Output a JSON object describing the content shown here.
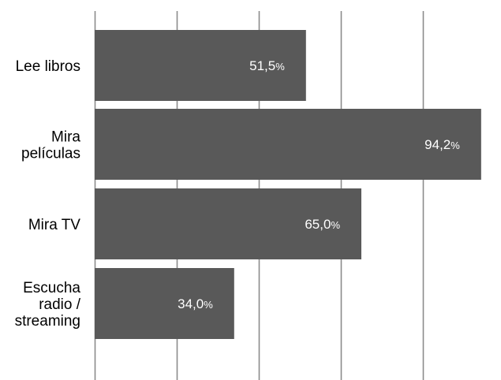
{
  "chart_data": {
    "type": "bar",
    "orientation": "horizontal",
    "categories": [
      [
        "Lee libros"
      ],
      [
        "Mira",
        "películas"
      ],
      [
        "Mira TV"
      ],
      [
        "Escucha",
        "radio /",
        "streaming"
      ]
    ],
    "values": [
      51.5,
      94.2,
      65.0,
      34.0
    ],
    "value_labels": [
      {
        "number": "51,5",
        "unit": "%"
      },
      {
        "number": "94,2",
        "unit": "%"
      },
      {
        "number": "65,0",
        "unit": "%"
      },
      {
        "number": "34,0",
        "unit": "%"
      }
    ],
    "title": "",
    "xlabel": "",
    "ylabel": "",
    "xlim": [
      0,
      100
    ],
    "grid_step": 20,
    "grid": true,
    "tick_labels_shown": false,
    "legend": "none",
    "colors": {
      "bar": "#595959",
      "grid": "#8c8c8c",
      "value_text": "#ffffff",
      "category_text": "#000000"
    }
  }
}
